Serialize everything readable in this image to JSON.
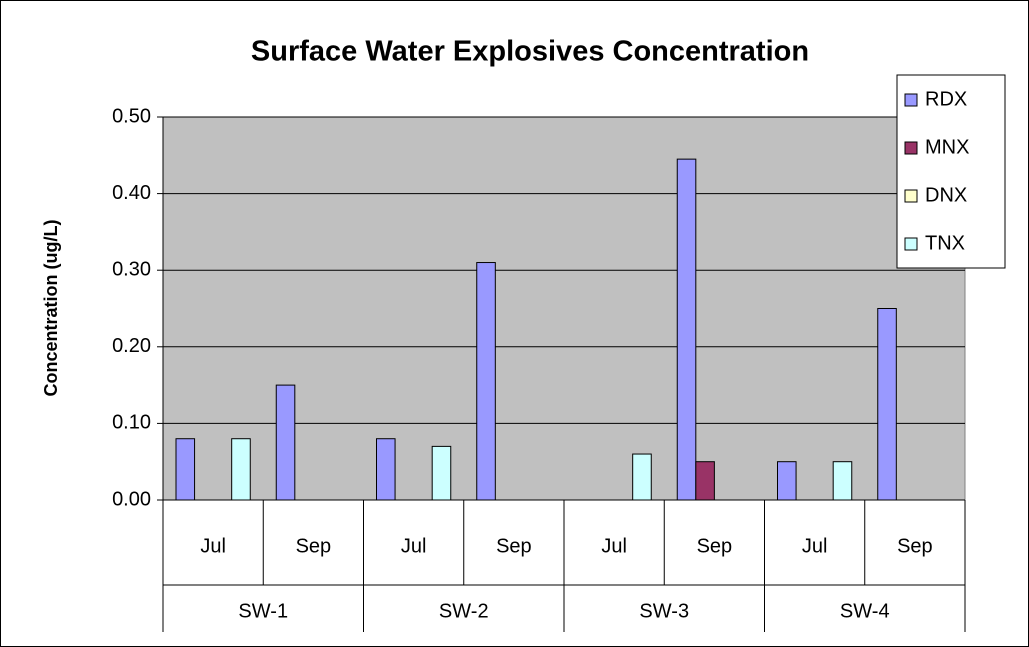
{
  "chart_data": {
    "type": "bar",
    "title": "Surface Water Explosives Concentration",
    "y_label": "Concentration (ug/L)",
    "categories": [
      "Jul",
      "Sep",
      "Jul",
      "Sep",
      "Jul",
      "Sep",
      "Jul",
      "Sep"
    ],
    "category_groups": [
      "SW-1",
      "SW-2",
      "SW-3",
      "SW-4"
    ],
    "series": [
      {
        "name": "RDX",
        "color": "#9999ff",
        "values": [
          0.08,
          0.15,
          0.08,
          0.31,
          0,
          0.445,
          0.05,
          0.25
        ]
      },
      {
        "name": "MNX",
        "color": "#993366",
        "values": [
          0,
          0,
          0,
          0,
          0,
          0.05,
          0,
          0
        ]
      },
      {
        "name": "DNX",
        "color": "#ffffcc",
        "values": [
          0,
          0,
          0,
          0,
          0,
          0,
          0,
          0
        ]
      },
      {
        "name": "TNX",
        "color": "#ccffff",
        "values": [
          0.08,
          0,
          0.07,
          0,
          0.06,
          0,
          0.05,
          0
        ]
      }
    ],
    "ylim": [
      0,
      0.5
    ],
    "yticks": [
      {
        "value": 0,
        "label": "0.00"
      },
      {
        "value": 0.1,
        "label": "0.10"
      },
      {
        "value": 0.2,
        "label": "0.20"
      },
      {
        "value": 0.3,
        "label": "0.30"
      },
      {
        "value": 0.4,
        "label": "0.40"
      },
      {
        "value": 0.5,
        "label": "0.50"
      }
    ],
    "grid": true,
    "legend": "right"
  }
}
